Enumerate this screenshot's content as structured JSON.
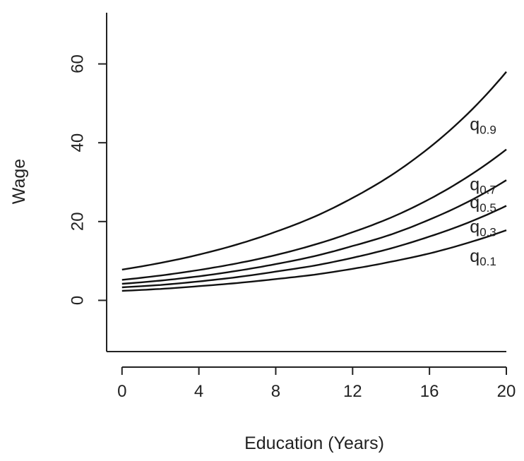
{
  "chart_data": {
    "type": "line",
    "xlabel": "Education (Years)",
    "ylabel": "Wage",
    "xlim": [
      -0.8,
      20
    ],
    "ylim": [
      -13,
      73
    ],
    "xticks": [
      0,
      4,
      8,
      12,
      16,
      20
    ],
    "yticks": [
      0,
      20,
      40,
      60
    ],
    "x": [
      0,
      2,
      4,
      6,
      8,
      10,
      12,
      14,
      16,
      18,
      20
    ],
    "series": [
      {
        "name": "q",
        "sub": "0.1",
        "values": [
          2.4,
          2.9,
          3.6,
          4.4,
          5.4,
          6.5,
          8.0,
          9.8,
          11.9,
          14.6,
          17.8
        ]
      },
      {
        "name": "q",
        "sub": "0.3",
        "values": [
          3.3,
          3.9,
          4.8,
          5.9,
          7.3,
          8.8,
          10.8,
          13.2,
          16.2,
          19.7,
          24.0
        ]
      },
      {
        "name": "q",
        "sub": "0.5",
        "values": [
          4.2,
          5.0,
          6.1,
          7.5,
          9.2,
          11.2,
          13.8,
          16.7,
          20.5,
          25.0,
          30.5
        ]
      },
      {
        "name": "q",
        "sub": "0.7",
        "values": [
          5.2,
          6.3,
          7.7,
          9.4,
          11.5,
          14.1,
          17.3,
          21.0,
          25.7,
          31.4,
          38.3
        ]
      },
      {
        "name": "q",
        "sub": "0.9",
        "values": [
          7.8,
          9.5,
          11.6,
          14.2,
          17.4,
          21.2,
          26.0,
          31.7,
          38.8,
          47.4,
          58.0
        ]
      }
    ]
  }
}
